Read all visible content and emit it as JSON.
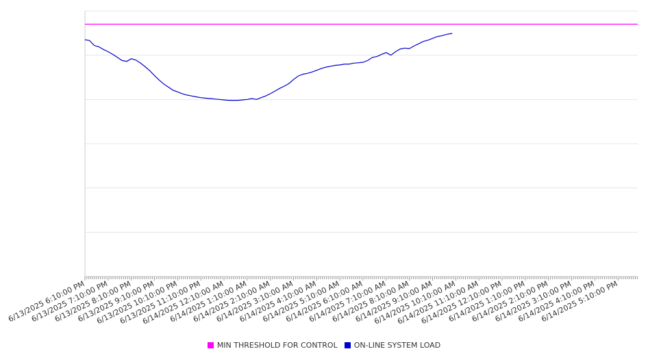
{
  "chart_data": {
    "type": "line",
    "title": "",
    "xlabel": "",
    "ylabel": "",
    "grid": true,
    "legend_position": "bottom",
    "y_gridlines": 6,
    "x_tick_labels": [
      "6/13/2025 6:10:00 PM",
      "6/13/2025 7:10:00 PM",
      "6/13/2025 8:10:00 PM",
      "6/13/2025 9:10:00 PM",
      "6/13/2025 10:10:00 PM",
      "6/13/2025 11:10:00 PM",
      "6/14/2025 12:10:00 AM",
      "6/14/2025 1:10:00 AM",
      "6/14/2025 2:10:00 AM",
      "6/14/2025 3:10:00 AM",
      "6/14/2025 4:10:00 AM",
      "6/14/2025 5:10:00 AM",
      "6/14/2025 6:10:00 AM",
      "6/14/2025 7:10:00 AM",
      "6/14/2025 8:10:00 AM",
      "6/14/2025 9:10:00 AM",
      "6/14/2025 10:10:00 AM",
      "6/14/2025 11:10:00 AM",
      "6/14/2025 12:10:00 PM",
      "6/14/2025 1:10:00 PM",
      "6/14/2025 2:10:00 PM",
      "6/14/2025 3:10:00 PM",
      "6/14/2025 4:10:00 PM",
      "6/14/2025 5:10:00 PM"
    ],
    "series": [
      {
        "name": "MIN THRESHOLD FOR CONTROL",
        "color": "#ff00ff",
        "values": [
          [
            0,
            5.7
          ],
          [
            23.85,
            5.7
          ]
        ]
      },
      {
        "name": "ON-LINE SYSTEM LOAD",
        "color": "#0000cc",
        "values": [
          [
            0,
            5.35
          ],
          [
            0.2,
            5.33
          ],
          [
            0.4,
            5.22
          ],
          [
            0.6,
            5.19
          ],
          [
            0.8,
            5.13
          ],
          [
            1.0,
            5.08
          ],
          [
            1.2,
            5.02
          ],
          [
            1.4,
            4.95
          ],
          [
            1.6,
            4.88
          ],
          [
            1.8,
            4.86
          ],
          [
            2.0,
            4.92
          ],
          [
            2.2,
            4.89
          ],
          [
            2.4,
            4.82
          ],
          [
            2.6,
            4.74
          ],
          [
            2.8,
            4.65
          ],
          [
            3.0,
            4.54
          ],
          [
            3.2,
            4.44
          ],
          [
            3.4,
            4.35
          ],
          [
            3.6,
            4.28
          ],
          [
            3.8,
            4.21
          ],
          [
            4.0,
            4.17
          ],
          [
            4.2,
            4.13
          ],
          [
            4.4,
            4.1
          ],
          [
            4.6,
            4.08
          ],
          [
            4.8,
            4.06
          ],
          [
            5.0,
            4.04
          ],
          [
            5.2,
            4.03
          ],
          [
            5.4,
            4.02
          ],
          [
            5.6,
            4.01
          ],
          [
            5.8,
            4.0
          ],
          [
            6.0,
            3.99
          ],
          [
            6.2,
            3.98
          ],
          [
            6.4,
            3.98
          ],
          [
            6.6,
            3.98
          ],
          [
            6.8,
            3.99
          ],
          [
            7.0,
            4.0
          ],
          [
            7.2,
            4.02
          ],
          [
            7.4,
            4.0
          ],
          [
            7.6,
            4.04
          ],
          [
            7.8,
            4.08
          ],
          [
            8.0,
            4.13
          ],
          [
            8.2,
            4.19
          ],
          [
            8.4,
            4.25
          ],
          [
            8.6,
            4.3
          ],
          [
            8.8,
            4.36
          ],
          [
            9.0,
            4.45
          ],
          [
            9.2,
            4.53
          ],
          [
            9.4,
            4.57
          ],
          [
            9.6,
            4.59
          ],
          [
            9.8,
            4.62
          ],
          [
            10.0,
            4.66
          ],
          [
            10.2,
            4.7
          ],
          [
            10.4,
            4.73
          ],
          [
            10.6,
            4.75
          ],
          [
            10.8,
            4.77
          ],
          [
            11.0,
            4.78
          ],
          [
            11.2,
            4.8
          ],
          [
            11.4,
            4.8
          ],
          [
            11.6,
            4.82
          ],
          [
            11.8,
            4.83
          ],
          [
            12.0,
            4.84
          ],
          [
            12.2,
            4.88
          ],
          [
            12.4,
            4.95
          ],
          [
            12.6,
            4.97
          ],
          [
            12.8,
            5.02
          ],
          [
            13.0,
            5.06
          ],
          [
            13.2,
            5.0
          ],
          [
            13.4,
            5.08
          ],
          [
            13.6,
            5.14
          ],
          [
            13.8,
            5.16
          ],
          [
            14.0,
            5.15
          ],
          [
            14.2,
            5.21
          ],
          [
            14.4,
            5.26
          ],
          [
            14.6,
            5.31
          ],
          [
            14.8,
            5.34
          ],
          [
            15.0,
            5.38
          ],
          [
            15.2,
            5.42
          ],
          [
            15.4,
            5.44
          ],
          [
            15.6,
            5.47
          ],
          [
            15.8,
            5.49
          ],
          [
            15.85,
            5.49
          ]
        ]
      }
    ]
  },
  "legend": {
    "items": [
      {
        "label": "MIN THRESHOLD FOR CONTROL",
        "color": "#ff00ff"
      },
      {
        "label": "ON-LINE SYSTEM LOAD",
        "color": "#0000cc"
      }
    ]
  }
}
